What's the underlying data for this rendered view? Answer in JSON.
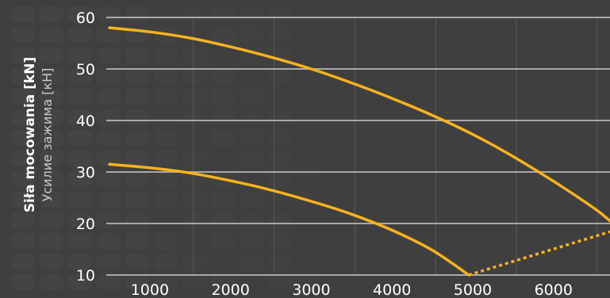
{
  "colors": {
    "background": "#3f3f3f",
    "pattern": "#474747",
    "grid": "#a9a9a9",
    "vgrid": "#595959",
    "curve": "#f9b21c",
    "text": "#ffffff",
    "subtext": "#c8c8c8"
  },
  "chart_data": {
    "type": "line",
    "title": "",
    "ylabel": "Siła mocowania [kN]",
    "ylabel_secondary": "Усилие зажима [кН]",
    "xlabel": "",
    "x_ticks": [
      1000,
      2000,
      3000,
      4000,
      5000,
      6000
    ],
    "y_ticks": [
      10,
      20,
      30,
      40,
      50,
      60
    ],
    "xlim": [
      500,
      6700
    ],
    "ylim": [
      10,
      60
    ],
    "grid": true,
    "legend": "none",
    "series": [
      {
        "style": "solid",
        "x": [
          500,
          1000,
          1500,
          2000,
          2500,
          3000,
          3500,
          4000,
          4500,
          5000,
          5500,
          6000,
          6500,
          6700
        ],
        "y": [
          58,
          57.2,
          56,
          54.3,
          52.3,
          50,
          47.3,
          44.3,
          41,
          37.3,
          33,
          28.2,
          23,
          20.5
        ]
      },
      {
        "style": "solid",
        "x": [
          500,
          1000,
          1500,
          2000,
          2500,
          3000,
          3500,
          4000,
          4500,
          4950
        ],
        "y": [
          31.5,
          30.8,
          29.8,
          28.3,
          26.5,
          24.3,
          21.8,
          18.7,
          14.8,
          10
        ]
      },
      {
        "style": "dashed",
        "x": [
          4950,
          6700
        ],
        "y": [
          10,
          18.4
        ]
      }
    ]
  }
}
